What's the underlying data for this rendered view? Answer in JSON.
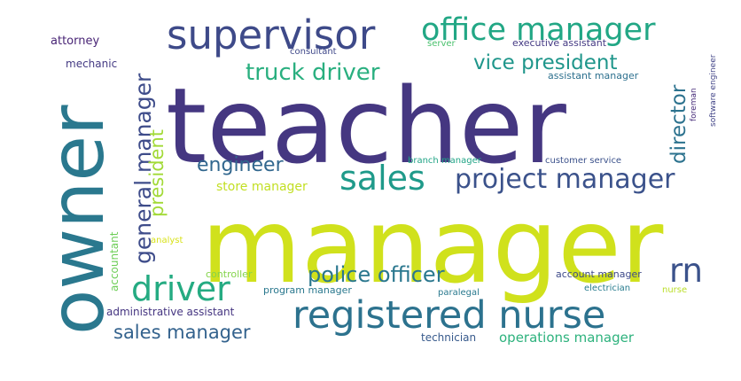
{
  "words": [
    {
      "text": "teacher",
      "color": "#453781"
    },
    {
      "text": "manager",
      "color": "#d0e11c"
    },
    {
      "text": "owner",
      "color": "#2a788e"
    },
    {
      "text": "supervisor",
      "color": "#3e4a89"
    },
    {
      "text": "office manager",
      "color": "#22a785"
    },
    {
      "text": "registered nurse",
      "color": "#2c728e"
    },
    {
      "text": "sales",
      "color": "#1f9a8a"
    },
    {
      "text": "project manager",
      "color": "#3b528b"
    },
    {
      "text": "driver",
      "color": "#25ab82"
    },
    {
      "text": "general manager",
      "color": "#3e4c8a"
    },
    {
      "text": "truck driver",
      "color": "#29af7f"
    },
    {
      "text": "vice president",
      "color": "#1f968b"
    },
    {
      "text": "director",
      "color": "#2c728e"
    },
    {
      "text": "rn",
      "color": "#3b528b"
    },
    {
      "text": "police officer",
      "color": "#2a778e"
    },
    {
      "text": "engineer",
      "color": "#31678e"
    },
    {
      "text": "sales manager",
      "color": "#33628d"
    },
    {
      "text": "president",
      "color": "#a2da37"
    },
    {
      "text": "operations manager",
      "color": "#2db27d"
    },
    {
      "text": "store manager",
      "color": "#c2df23"
    },
    {
      "text": "attorney",
      "color": "#482475"
    },
    {
      "text": "mechanic",
      "color": "#443a83"
    },
    {
      "text": "consultant",
      "color": "#3f4889"
    },
    {
      "text": "server",
      "color": "#4ac16d"
    },
    {
      "text": "executive assistant",
      "color": "#443983"
    },
    {
      "text": "assistant manager",
      "color": "#2d708e"
    },
    {
      "text": "software engineer",
      "color": "#414487"
    },
    {
      "text": "foreman",
      "color": "#472c7a"
    },
    {
      "text": "branch manager",
      "color": "#20a486"
    },
    {
      "text": "customer service",
      "color": "#3b518b"
    },
    {
      "text": "accountant",
      "color": "#6ece58"
    },
    {
      "text": "analyst",
      "color": "#d8e219"
    },
    {
      "text": "controller",
      "color": "#84d44b"
    },
    {
      "text": "account manager",
      "color": "#3e4a89"
    },
    {
      "text": "program manager",
      "color": "#2a788e"
    },
    {
      "text": "paralegal",
      "color": "#29798e"
    },
    {
      "text": "electrician",
      "color": "#287c8e"
    },
    {
      "text": "nurse",
      "color": "#bade28"
    },
    {
      "text": "administrative assistant",
      "color": "#453581"
    },
    {
      "text": "technician",
      "color": "#375a8c"
    }
  ]
}
